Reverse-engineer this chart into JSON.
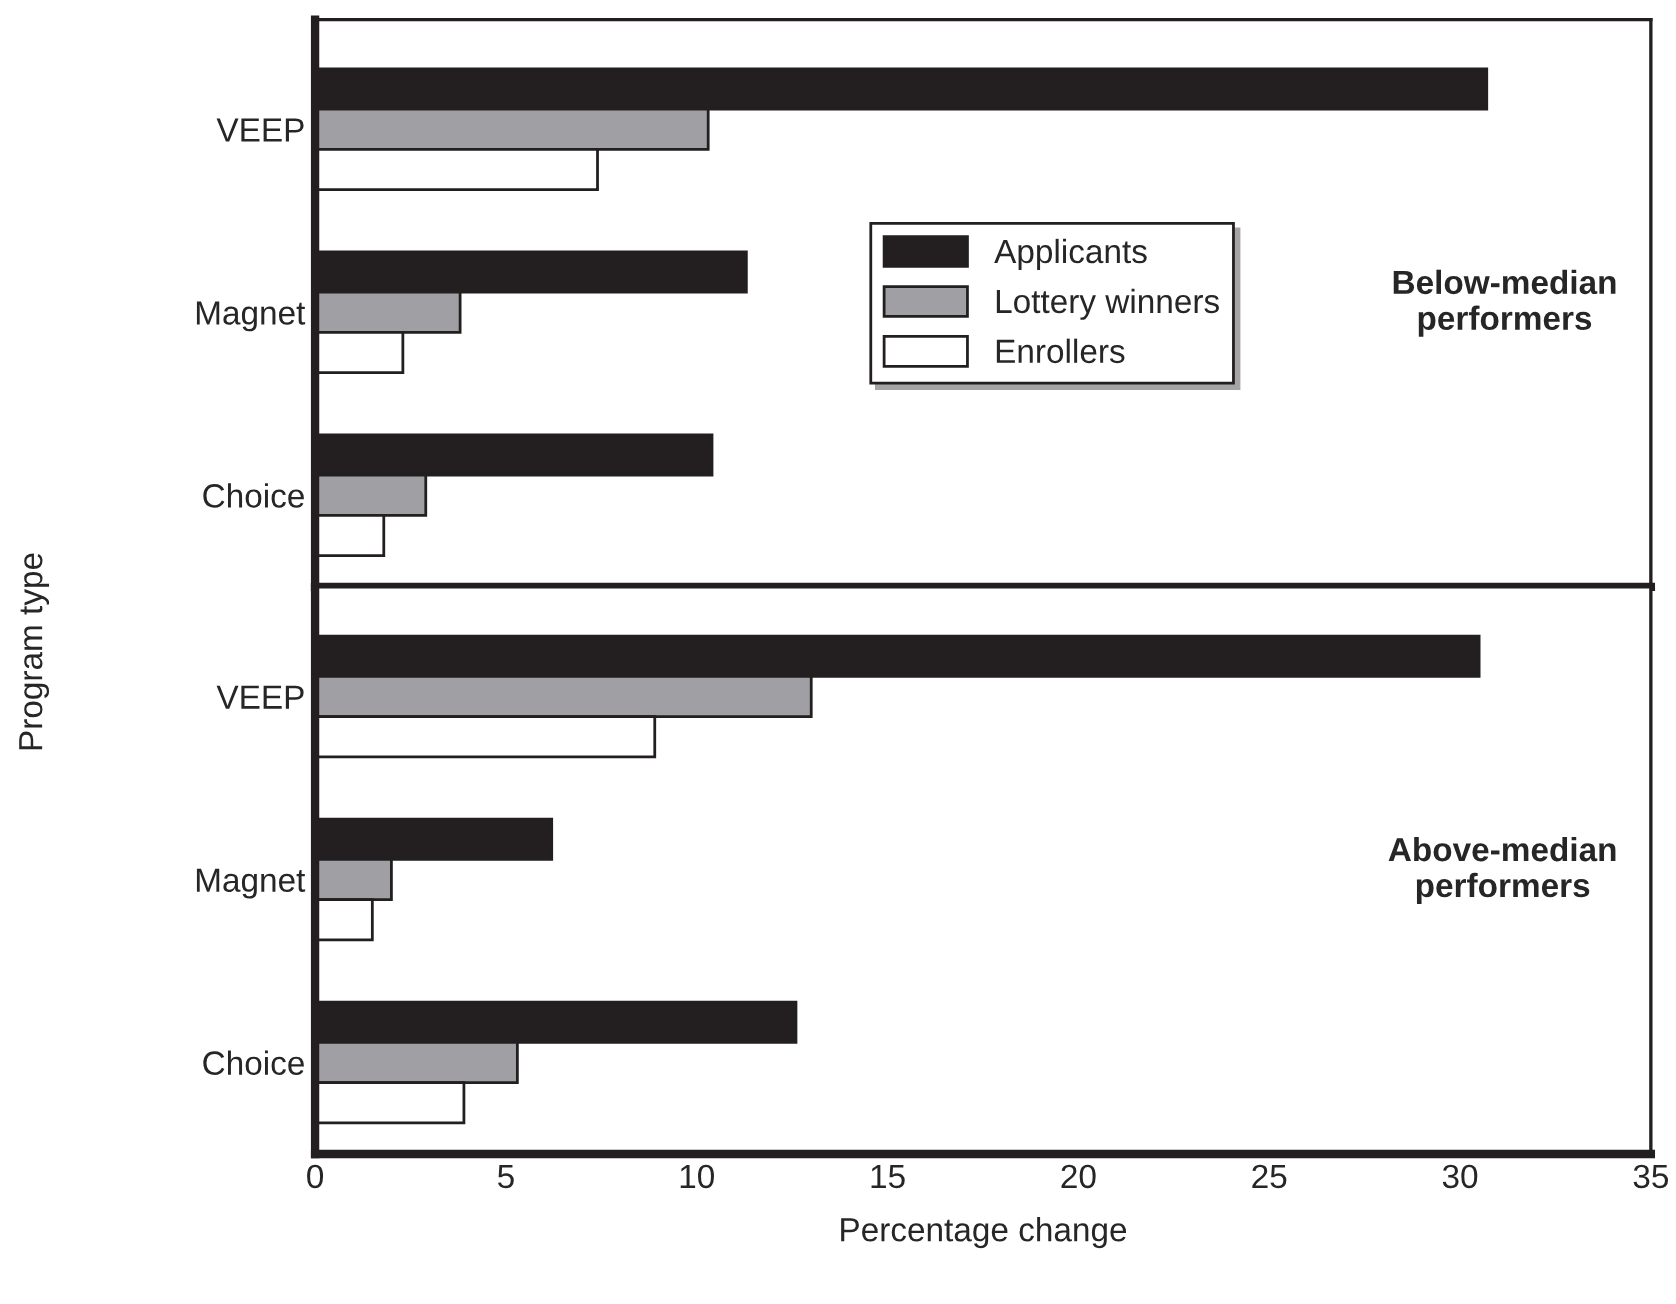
{
  "chart_data": [
    {
      "type": "bar",
      "orientation": "horizontal",
      "categories": [
        "VEEP",
        "Magnet",
        "Choice"
      ],
      "ylabel": "Program type",
      "xlim": [
        0,
        35
      ],
      "tick_labels": "y",
      "legend": "right",
      "annotations": [
        "Below-median\nperformers"
      ],
      "series": [
        {
          "name": "Applicants",
          "color": "#231f20",
          "values": [
            30.7,
            11.3,
            10.4
          ]
        },
        {
          "name": "Lottery winners",
          "color": "#a0a0a4",
          "values": [
            10.3,
            3.8,
            2.9
          ]
        },
        {
          "name": "Enrollers",
          "color": "#ffffff",
          "values": [
            7.4,
            2.3,
            1.8
          ]
        }
      ]
    },
    {
      "type": "bar",
      "orientation": "horizontal",
      "categories": [
        "VEEP",
        "Magnet",
        "Choice"
      ],
      "xlabel": "Percentage change",
      "xlim": [
        0,
        35
      ],
      "xticks": [
        0,
        5,
        10,
        15,
        20,
        25,
        30,
        35
      ],
      "annotations": [
        "Above-median\nperformers"
      ],
      "series": [
        {
          "color": "#231f20",
          "values": [
            30.5,
            6.2,
            12.6
          ]
        },
        {
          "color": "#a0a0a4",
          "values": [
            13.0,
            2.0,
            5.3
          ]
        },
        {
          "color": "#ffffff",
          "values": [
            8.9,
            1.5,
            3.9
          ]
        }
      ]
    }
  ]
}
